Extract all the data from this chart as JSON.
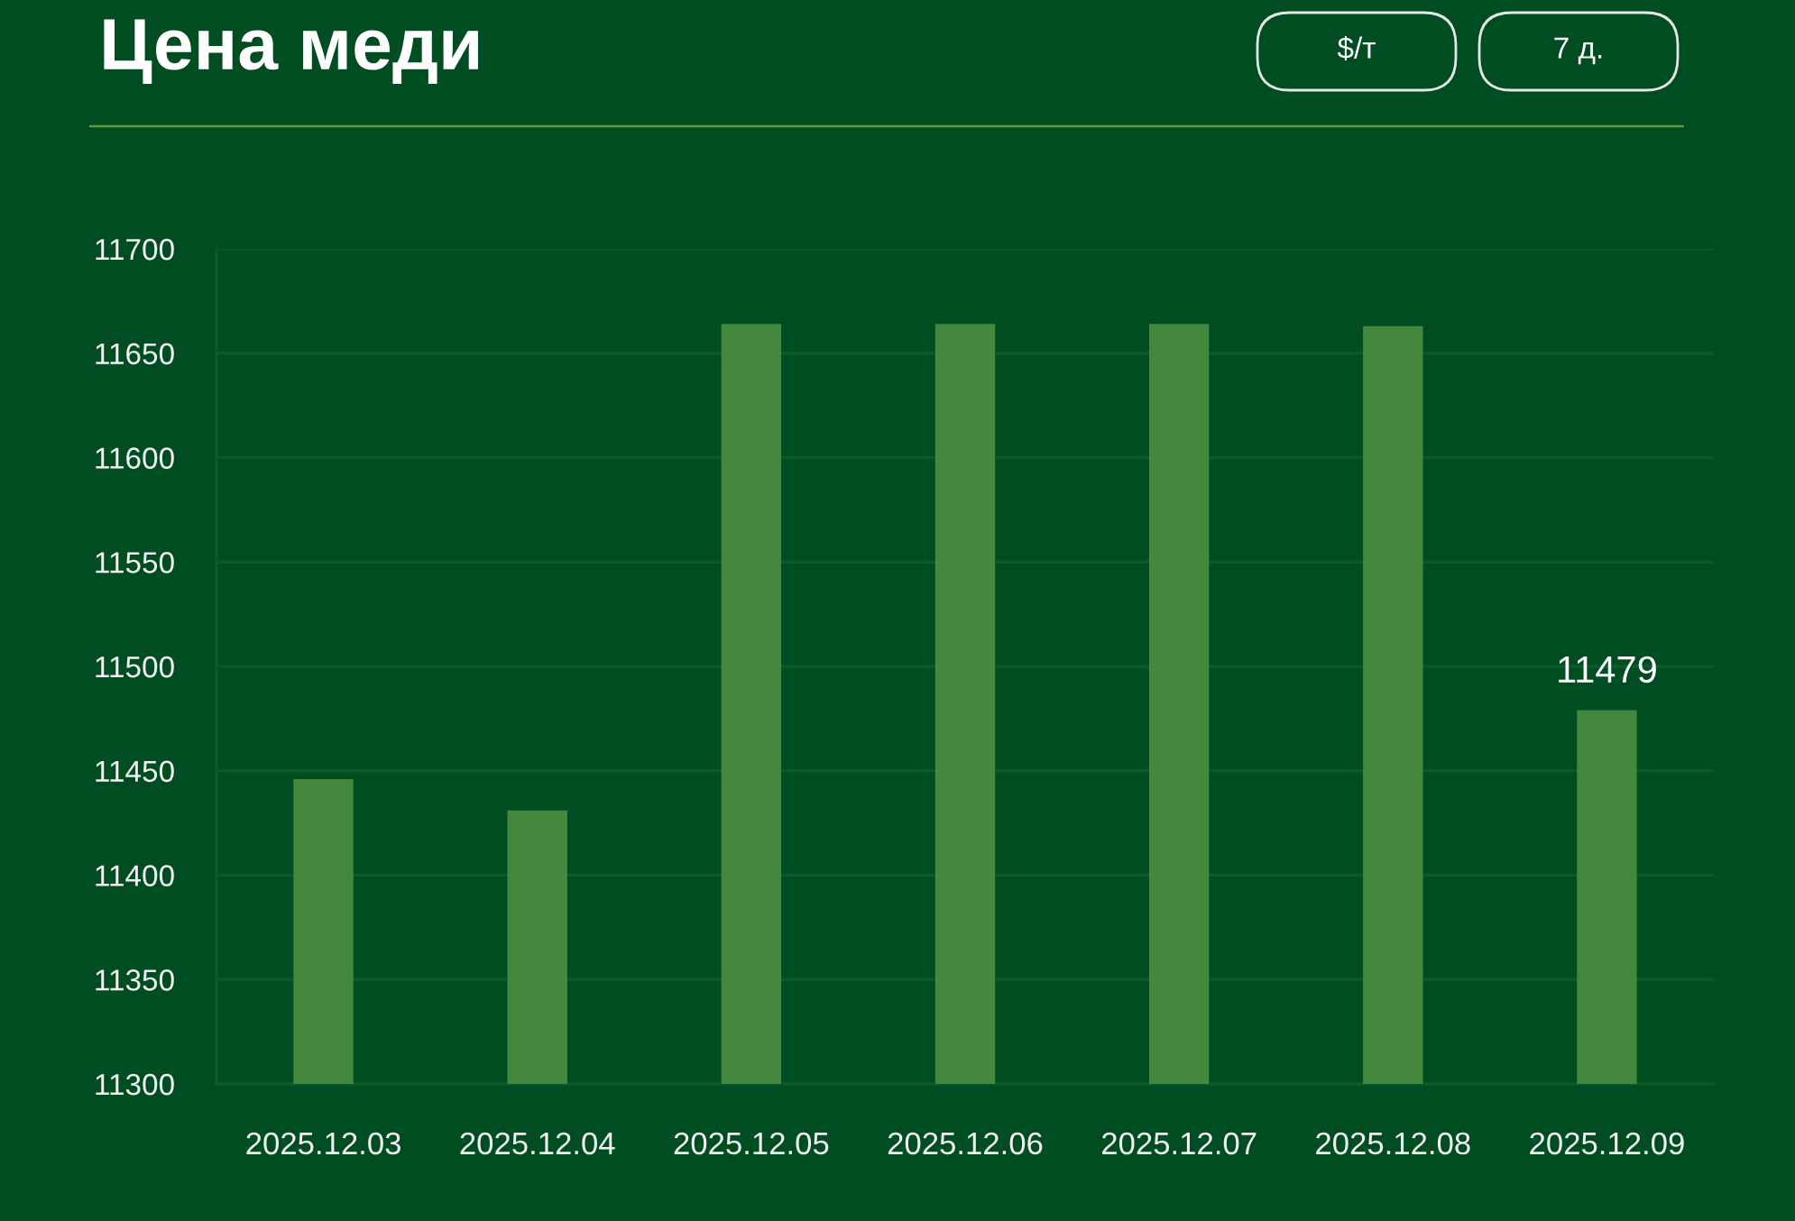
{
  "chart_data": {
    "type": "bar",
    "title": "Цена меди",
    "annotations": [
      "$/т",
      "7 д."
    ],
    "categories": [
      "2025.12.03",
      "2025.12.04",
      "2025.12.05",
      "2025.12.06",
      "2025.12.07",
      "2025.12.08",
      "2025.12.09"
    ],
    "values": [
      11446,
      11431,
      11664,
      11664,
      11664,
      11663,
      11479
    ],
    "value_labels": [
      null,
      null,
      null,
      null,
      null,
      null,
      "11479"
    ],
    "color": "#44883f",
    "ylim": [
      11300,
      11700
    ],
    "yticks": [
      11300,
      11350,
      11400,
      11450,
      11500,
      11550,
      11600,
      11650,
      11700
    ],
    "grid": "y",
    "legend": false
  }
}
